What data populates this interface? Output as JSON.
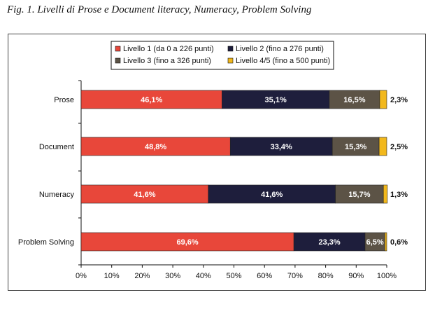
{
  "figure_title": "Fig. 1. Livelli di Prose e Document literacy, Numeracy, Problem Solving",
  "colors": {
    "level1": "#e8473a",
    "level2": "#1e1e3c",
    "level3": "#5c5346",
    "level45": "#f2b81c",
    "axis": "#111111"
  },
  "chart_data": {
    "type": "bar",
    "orientation": "horizontal",
    "stacked": true,
    "title": "",
    "xlabel": "",
    "ylabel": "",
    "xlim": [
      0,
      100
    ],
    "x_ticks": [
      "0%",
      "10%",
      "20%",
      "30%",
      "40%",
      "50%",
      "60%",
      "70%",
      "80%",
      "90%",
      "100%"
    ],
    "grid": false,
    "legend_position": "top",
    "categories": [
      "Prose",
      "Document",
      "Numeracy",
      "Problem Solving"
    ],
    "series": [
      {
        "name": "Livello 1 (da 0 a 226 punti)",
        "values": [
          46.1,
          48.8,
          41.6,
          69.6
        ],
        "labels": [
          "46,1%",
          "48,8%",
          "41,6%",
          "69,6%"
        ]
      },
      {
        "name": "Livello 2 (fino a 276 punti)",
        "values": [
          35.1,
          33.4,
          41.6,
          23.3
        ],
        "labels": [
          "35,1%",
          "33,4%",
          "41,6%",
          "23,3%"
        ]
      },
      {
        "name": "Livello 3 (fino a 326 punti)",
        "values": [
          16.5,
          15.3,
          15.7,
          6.5
        ],
        "labels": [
          "16,5%",
          "15,3%",
          "15,7%",
          "6,5%"
        ]
      },
      {
        "name": "Livello 4/5 (fino a 500 punti)",
        "values": [
          2.3,
          2.5,
          1.3,
          0.6
        ],
        "labels": [
          "2,3%",
          "2,5%",
          "1,3%",
          "0,6%"
        ]
      }
    ]
  }
}
